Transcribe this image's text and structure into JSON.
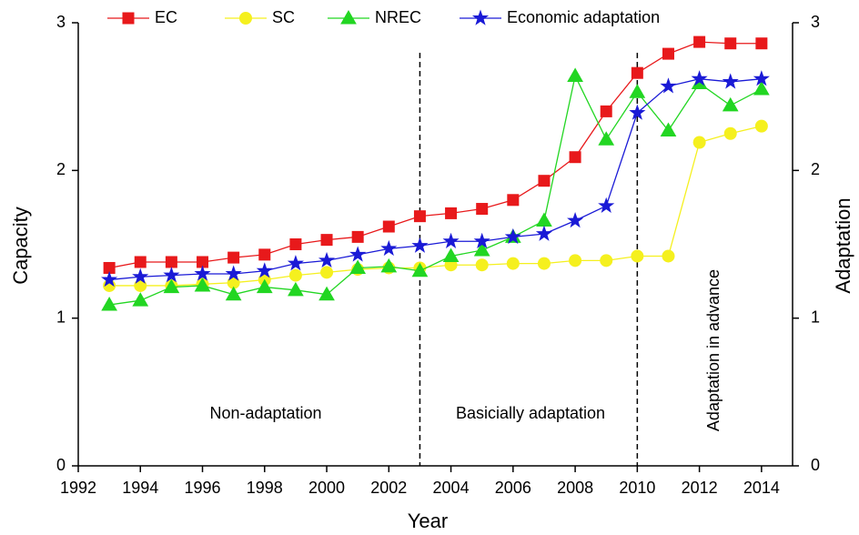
{
  "chart_data": {
    "type": "line",
    "x_label": "Year",
    "y_label": "Capacity",
    "y2_label": "Adaptation",
    "x": [
      1993,
      1994,
      1995,
      1996,
      1997,
      1998,
      1999,
      2000,
      2001,
      2002,
      2003,
      2004,
      2005,
      2006,
      2007,
      2008,
      2009,
      2010,
      2011,
      2012,
      2013,
      2014
    ],
    "xlim": [
      1992,
      2015
    ],
    "xticks": [
      1992,
      1994,
      1996,
      1998,
      2000,
      2002,
      2004,
      2006,
      2008,
      2010,
      2012,
      2014
    ],
    "ylim": [
      0,
      3
    ],
    "yticks": [
      0,
      1,
      2,
      3
    ],
    "y2lim": [
      0,
      3
    ],
    "y2ticks": [
      0,
      1,
      2,
      3
    ],
    "grid": false,
    "legend_position": "top",
    "vlines": [
      2003,
      2010
    ],
    "annotations": [
      "Non-adaptation",
      "Basicially adaptation",
      "Adaptation in advance"
    ],
    "series": [
      {
        "name": "EC",
        "color": "#e8191b",
        "marker": "square",
        "values": [
          1.34,
          1.38,
          1.38,
          1.38,
          1.41,
          1.43,
          1.5,
          1.53,
          1.55,
          1.62,
          1.69,
          1.71,
          1.74,
          1.8,
          1.93,
          2.09,
          2.4,
          2.66,
          2.79,
          2.87,
          2.86,
          2.86
        ]
      },
      {
        "name": "SC",
        "color": "#f5f01e",
        "marker": "circle",
        "values": [
          1.22,
          1.22,
          1.22,
          1.23,
          1.24,
          1.26,
          1.29,
          1.31,
          1.33,
          1.34,
          1.34,
          1.36,
          1.36,
          1.37,
          1.37,
          1.39,
          1.39,
          1.42,
          1.42,
          2.19,
          2.25,
          2.3
        ]
      },
      {
        "name": "NREC",
        "color": "#22d622",
        "marker": "triangle",
        "values": [
          1.09,
          1.12,
          1.21,
          1.22,
          1.16,
          1.21,
          1.19,
          1.16,
          1.34,
          1.35,
          1.32,
          1.42,
          1.46,
          1.55,
          1.66,
          2.64,
          2.21,
          2.53,
          2.27,
          2.59,
          2.44,
          2.55
        ]
      },
      {
        "name": "Economic adaptation",
        "color": "#1a1ad6",
        "marker": "star",
        "axis": "y2",
        "values": [
          1.26,
          1.28,
          1.29,
          1.3,
          1.3,
          1.32,
          1.37,
          1.39,
          1.43,
          1.47,
          1.49,
          1.52,
          1.52,
          1.55,
          1.57,
          1.66,
          1.76,
          2.39,
          2.57,
          2.62,
          2.6,
          2.62
        ]
      }
    ]
  }
}
